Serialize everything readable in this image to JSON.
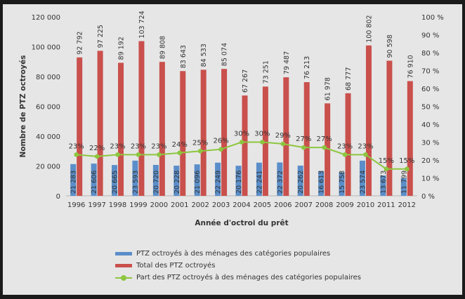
{
  "chart_data": {
    "type": "bar",
    "categories": [
      "1996",
      "1997",
      "1998",
      "1999",
      "2000",
      "2001",
      "2002",
      "2003",
      "2004",
      "2005",
      "2006",
      "2007",
      "2008",
      "2009",
      "2010",
      "2011",
      "2012"
    ],
    "series": [
      {
        "name": "PTZ octroyés à des ménages des catégories populaires",
        "type": "bar",
        "axis": "left",
        "color": "#5b8ec9",
        "values": [
          21283,
          21606,
          20665,
          23593,
          20720,
          20228,
          21096,
          22249,
          20176,
          22241,
          22372,
          20262,
          16613,
          15758,
          23574,
          13673,
          11799
        ],
        "labels": [
          "21 283",
          "21 606",
          "20 665",
          "23 593",
          "20 720",
          "20 228",
          "21 096",
          "22 249",
          "20 176",
          "22 241",
          "22 372",
          "20 262",
          "16 613",
          "15 758",
          "23 574",
          "13 673",
          "11 799"
        ]
      },
      {
        "name": "Total des PTZ octroyés",
        "type": "bar",
        "axis": "left",
        "color": "#c9504c",
        "values": [
          92792,
          97225,
          89192,
          103724,
          89808,
          83643,
          84533,
          85074,
          67267,
          73251,
          79487,
          76213,
          61978,
          68777,
          100802,
          90598,
          76910
        ],
        "labels": [
          "92 792",
          "97 225",
          "89 192",
          "103 724",
          "89 808",
          "83 643",
          "84 533",
          "85 074",
          "67 267",
          "73 251",
          "79 487",
          "76 213",
          "61 978",
          "68 777",
          "100 802",
          "90 598",
          "76 910"
        ]
      },
      {
        "name": "Part des PTZ octroyés à des ménages des catégories populaires",
        "type": "line",
        "axis": "right",
        "color": "#8dc63f",
        "values": [
          23,
          22,
          23,
          23,
          23,
          24,
          25,
          26,
          30,
          30,
          29,
          27,
          27,
          23,
          23,
          15,
          15
        ],
        "labels": [
          "23%",
          "22%",
          "23%",
          "23%",
          "23%",
          "24%",
          "25%",
          "26%",
          "30%",
          "30%",
          "29%",
          "27%",
          "27%",
          "23%",
          "23%",
          "15%",
          "15%"
        ]
      }
    ],
    "xlabel": "Année d'octroi du prêt",
    "ylabel": "Nombre de PTZ octroyés",
    "ylim": [
      0,
      120000
    ],
    "y2lim": [
      0,
      100
    ],
    "yticks": [
      "0",
      "20 000",
      "40 000",
      "60 000",
      "80 000",
      "100 000",
      "120 000"
    ],
    "y2ticks": [
      "0 %",
      "10 %",
      "20 %",
      "30 %",
      "40 %",
      "50 %",
      "60 %",
      "70 %",
      "80 %",
      "90 %",
      "100 %"
    ],
    "grid": false,
    "legend_position": "bottom"
  }
}
